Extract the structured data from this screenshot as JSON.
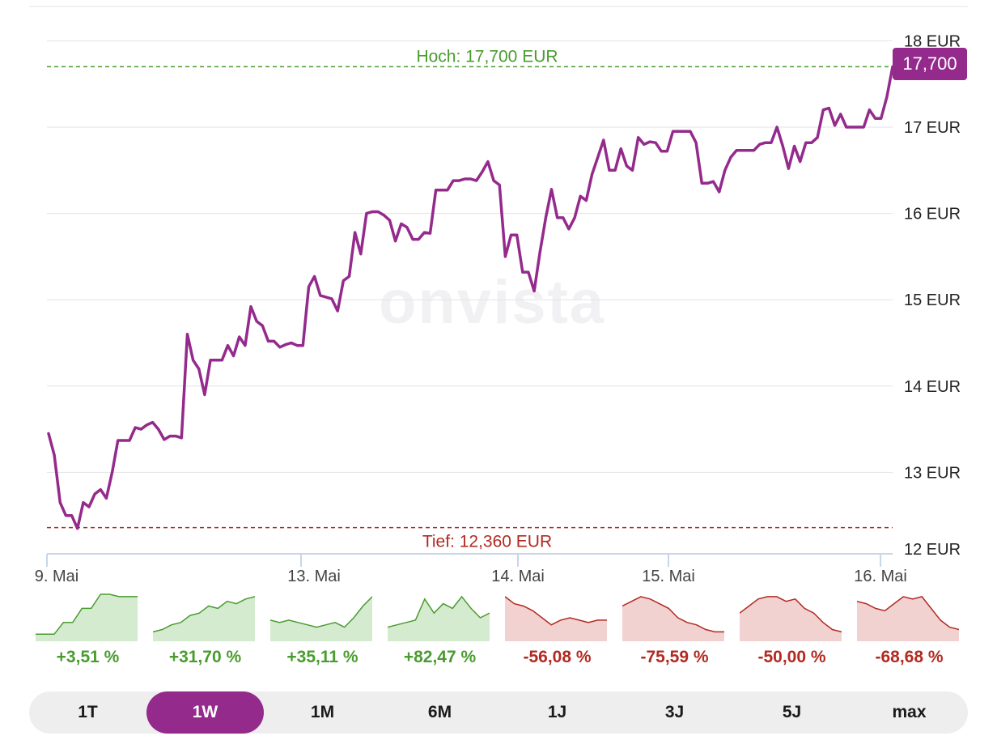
{
  "chart_data": {
    "type": "line",
    "currency": "EUR",
    "y_ticks": [
      "12 EUR",
      "13 EUR",
      "14 EUR",
      "15 EUR",
      "16 EUR",
      "17 EUR",
      "18 EUR"
    ],
    "ylim": [
      12,
      18.2
    ],
    "x_ticks": [
      "9. Mai",
      "13. Mai",
      "14. Mai",
      "15. Mai",
      "16. Mai"
    ],
    "high_label": "Hoch: 17,700 EUR",
    "high_value": 17.7,
    "low_label": "Tief: 12,360 EUR",
    "low_value": 12.36,
    "last_value_label": "17,700",
    "series": [
      {
        "values": [
          13.45,
          13.2,
          12.65,
          12.5,
          12.5,
          12.35,
          12.65,
          12.6,
          12.75,
          12.8,
          12.7,
          13.0,
          13.37,
          13.37,
          13.37,
          13.52,
          13.5,
          13.55,
          13.58,
          13.5,
          13.38,
          13.42,
          13.42,
          13.4,
          14.6,
          14.3,
          14.2,
          13.9,
          14.3,
          14.3,
          14.3,
          14.47,
          14.35,
          14.57,
          14.47,
          14.92,
          14.75,
          14.7,
          14.52,
          14.52,
          14.45,
          14.48,
          14.5,
          14.47,
          14.47,
          15.15,
          15.27,
          15.05,
          15.03,
          15.01,
          14.87,
          15.22,
          15.27,
          15.78,
          15.53,
          16.0,
          16.02,
          16.02,
          15.98,
          15.92,
          15.68,
          15.88,
          15.84,
          15.7,
          15.7,
          15.78,
          15.77,
          16.27,
          16.27,
          16.27,
          16.38,
          16.38,
          16.4,
          16.4,
          16.38,
          16.48,
          16.6,
          16.38,
          16.33,
          15.5,
          15.75,
          15.75,
          15.32,
          15.32,
          15.1,
          15.55,
          15.95,
          16.28,
          15.95,
          15.95,
          15.82,
          15.95,
          16.2,
          16.15,
          16.45,
          16.65,
          16.85,
          16.5,
          16.5,
          16.75,
          16.55,
          16.5,
          16.88,
          16.8,
          16.83,
          16.82,
          16.72,
          16.72,
          16.95,
          16.95,
          16.95,
          16.95,
          16.82,
          16.35,
          16.35,
          16.37,
          16.25,
          16.5,
          16.65,
          16.73,
          16.73,
          16.73,
          16.73,
          16.8,
          16.82,
          16.82,
          17.0,
          16.78,
          16.52,
          16.78,
          16.6,
          16.82,
          16.82,
          16.88,
          17.2,
          17.22,
          17.02,
          17.15,
          17.0,
          17.0,
          17.0,
          17.0,
          17.2,
          17.1,
          17.1,
          17.35,
          17.7
        ]
      }
    ]
  },
  "watermark": "onvista",
  "performance": [
    {
      "period": "1T",
      "value": "+3,51 %",
      "positive": true,
      "spark": [
        0.15,
        0.15,
        0.15,
        0.4,
        0.4,
        0.7,
        0.7,
        1.0,
        1.0,
        0.95,
        0.95,
        0.95
      ]
    },
    {
      "period": "1W",
      "value": "+31,70 %",
      "positive": true,
      "spark": [
        0.2,
        0.25,
        0.35,
        0.4,
        0.55,
        0.6,
        0.75,
        0.7,
        0.85,
        0.8,
        0.9,
        0.95
      ]
    },
    {
      "period": "1M",
      "value": "+35,11 %",
      "positive": true,
      "spark": [
        0.45,
        0.4,
        0.45,
        0.4,
        0.35,
        0.3,
        0.35,
        0.4,
        0.3,
        0.5,
        0.75,
        0.95
      ]
    },
    {
      "period": "6M",
      "value": "+82,47 %",
      "positive": true,
      "spark": [
        0.3,
        0.35,
        0.4,
        0.45,
        0.9,
        0.6,
        0.8,
        0.7,
        0.95,
        0.7,
        0.5,
        0.6
      ]
    },
    {
      "period": "1J",
      "value": "-56,08 %",
      "positive": false,
      "spark": [
        0.95,
        0.8,
        0.75,
        0.65,
        0.5,
        0.35,
        0.45,
        0.5,
        0.45,
        0.4,
        0.45,
        0.45
      ]
    },
    {
      "period": "3J",
      "value": "-75,59 %",
      "positive": false,
      "spark": [
        0.75,
        0.85,
        0.95,
        0.9,
        0.8,
        0.7,
        0.5,
        0.4,
        0.35,
        0.25,
        0.2,
        0.2
      ]
    },
    {
      "period": "5J",
      "value": "-50,00 %",
      "positive": false,
      "spark": [
        0.6,
        0.75,
        0.9,
        0.95,
        0.95,
        0.85,
        0.9,
        0.7,
        0.6,
        0.4,
        0.25,
        0.2
      ]
    },
    {
      "period": "max",
      "value": "-68,68 %",
      "positive": false,
      "spark": [
        0.85,
        0.8,
        0.7,
        0.65,
        0.8,
        0.95,
        0.9,
        0.95,
        0.7,
        0.45,
        0.3,
        0.25
      ]
    }
  ],
  "range_buttons": [
    "1T",
    "1W",
    "1M",
    "6M",
    "1J",
    "3J",
    "5J",
    "max"
  ],
  "active_range": "1W",
  "colors": {
    "line": "#942a8c",
    "high": "#4a9c2f",
    "low": "#b22a22",
    "grid": "#e3e3e8",
    "positive_fill": "#d5ebd0",
    "negative_fill": "#f1d2d1"
  }
}
